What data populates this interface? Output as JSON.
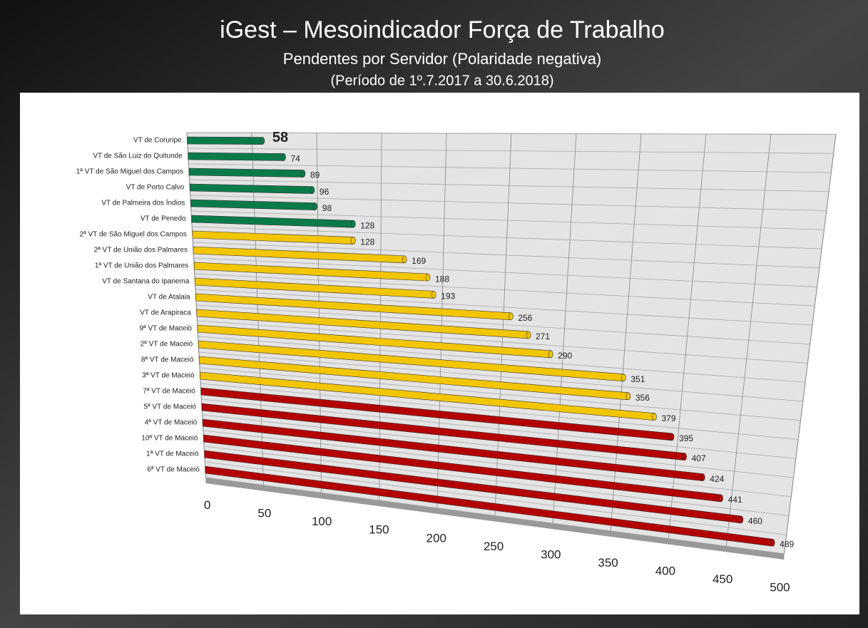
{
  "chart_data": {
    "type": "bar",
    "title": "iGest – Mesoindicador Força de Trabalho",
    "subtitle": "Pendentes por Servidor (Polaridade negativa)",
    "period": "(Período de 1º.7.2017  a  30.6.2018)",
    "categories": [
      "VT de Coruripe",
      "VT de São Luiz do Quitunde",
      "1ª VT de São Miguel dos Campos",
      "VT de Porto Calvo",
      "VT de Palmeira dos Índios",
      "VT de Penedo",
      "2ª VT de São Miguel dos Campos",
      "2ª VT de União dos Palmares",
      "1ª VT de União dos Palmares",
      "VT de Santana do Ipanema",
      "VT de Atalaia",
      "VT de Arapiraca",
      "9ª VT de Maceió",
      "2ª VT de Maceió",
      "8ª VT de Maceió",
      "3ª VT de Maceió",
      "7ª VT de Maceió",
      "5ª VT de Maceió",
      "4ª VT de Maceió",
      "10ª VT de Maceió",
      "1ª VT de Maceió",
      "6ª VT de Maceió"
    ],
    "values": [
      58,
      74,
      89,
      96,
      98,
      128,
      128,
      169,
      188,
      193,
      256,
      271,
      290,
      351,
      356,
      379,
      395,
      407,
      424,
      441,
      460,
      489
    ],
    "colors": [
      "#0b7a4a",
      "#0b7a4a",
      "#0b7a4a",
      "#0b7a4a",
      "#0b7a4a",
      "#0b7a4a",
      "#f2c500",
      "#f2c500",
      "#f2c500",
      "#f2c500",
      "#f2c500",
      "#f2c500",
      "#f2c500",
      "#f2c500",
      "#f2c500",
      "#f2c500",
      "#b30000",
      "#b30000",
      "#b30000",
      "#b30000",
      "#b30000",
      "#b30000"
    ],
    "xlim": [
      0,
      500
    ],
    "xticks": [
      0,
      50,
      100,
      150,
      200,
      250,
      300,
      350,
      400,
      450,
      500
    ],
    "grid": true
  }
}
